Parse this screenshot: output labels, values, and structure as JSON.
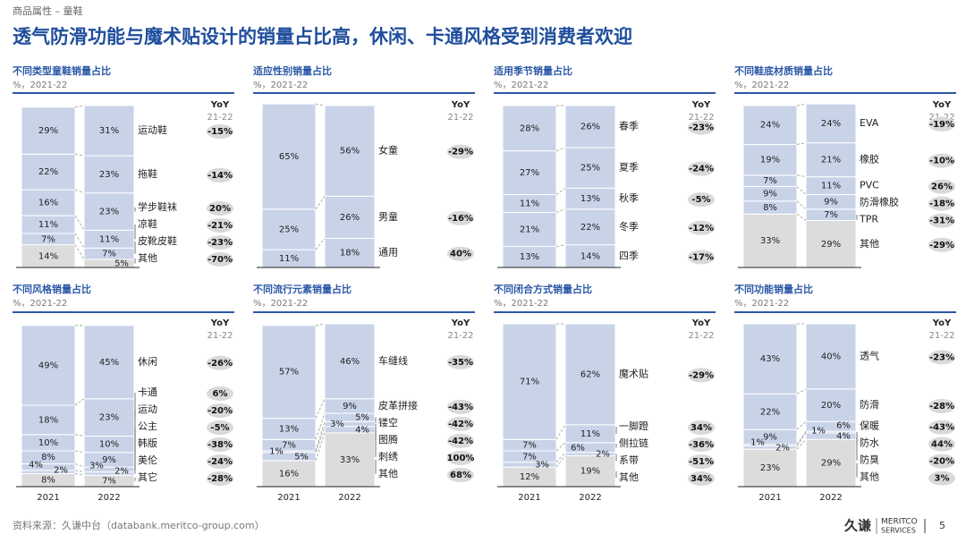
{
  "header": {
    "section": "商品属性 – 童鞋",
    "title": "透气防滑功能与魔术贴设计的销量占比高，休闲、卡通风格受到消费者欢迎"
  },
  "chart_data": [
    {
      "type": "stacked_bar",
      "title": "不同类型童鞋销量占比",
      "subtitle": "%，2021-22",
      "categories": [
        null,
        null
      ],
      "ylim": [
        0,
        100
      ],
      "yoy_header": "YoY",
      "yoy_period": "21-22",
      "series": [
        {
          "name": "运动鞋",
          "color": "#c9d3e8",
          "values": [
            29,
            31
          ],
          "value_labels": [
            "29%",
            "31%"
          ],
          "yoy": "-15%"
        },
        {
          "name": "拖鞋",
          "color": "#c9d3e8",
          "values": [
            22,
            23
          ],
          "value_labels": [
            "22%",
            "23%"
          ],
          "yoy": "-14%"
        },
        {
          "name": "学步鞋袜",
          "color": "#c9d3e8",
          "values": [
            16,
            23
          ],
          "value_labels": [
            "16%",
            "23%"
          ],
          "yoy": "20%"
        },
        {
          "name": "凉鞋",
          "color": "#c9d3e8",
          "values": [
            11,
            11
          ],
          "value_labels": [
            "11%",
            "11%"
          ],
          "yoy": "-21%"
        },
        {
          "name": "皮靴皮鞋",
          "color": "#c9d3e8",
          "values": [
            7,
            7
          ],
          "value_labels": [
            "7%",
            "7%"
          ],
          "yoy": "-23%"
        },
        {
          "name": "其他",
          "color": "#dcdcdc",
          "values": [
            14,
            5
          ],
          "value_labels": [
            "14%",
            "5%"
          ],
          "yoy": "-70%"
        }
      ]
    },
    {
      "type": "stacked_bar",
      "title": "适应性别销量占比",
      "subtitle": "%，2021-22",
      "categories": [
        null,
        null
      ],
      "ylim": [
        0,
        100
      ],
      "yoy_header": "YoY",
      "yoy_period": "21-22",
      "series": [
        {
          "name": "女童",
          "color": "#c9d3e8",
          "values": [
            65,
            56
          ],
          "value_labels": [
            "65%",
            "56%"
          ],
          "yoy": "-29%"
        },
        {
          "name": "男童",
          "color": "#c9d3e8",
          "values": [
            25,
            26
          ],
          "value_labels": [
            "25%",
            "26%"
          ],
          "yoy": "-16%"
        },
        {
          "name": "通用",
          "color": "#c9d3e8",
          "values": [
            11,
            18
          ],
          "value_labels": [
            "11%",
            "18%"
          ],
          "yoy": "40%"
        }
      ]
    },
    {
      "type": "stacked_bar",
      "title": "适用季节销量占比",
      "subtitle": "%，2021-22",
      "categories": [
        null,
        null
      ],
      "ylim": [
        0,
        100
      ],
      "yoy_header": "YoY",
      "yoy_period": "21-22",
      "series": [
        {
          "name": "春季",
          "color": "#c9d3e8",
          "values": [
            28,
            26
          ],
          "value_labels": [
            "28%",
            "26%"
          ],
          "yoy": "-23%"
        },
        {
          "name": "夏季",
          "color": "#c9d3e8",
          "values": [
            27,
            25
          ],
          "value_labels": [
            "27%",
            "25%"
          ],
          "yoy": "-24%"
        },
        {
          "name": "秋季",
          "color": "#c9d3e8",
          "values": [
            11,
            13
          ],
          "value_labels": [
            "11%",
            "13%"
          ],
          "yoy": "-5%"
        },
        {
          "name": "冬季",
          "color": "#c9d3e8",
          "values": [
            21,
            22
          ],
          "value_labels": [
            "21%",
            "22%"
          ],
          "yoy": "-12%"
        },
        {
          "name": "四季",
          "color": "#c9d3e8",
          "values": [
            13,
            14
          ],
          "value_labels": [
            "13%",
            "14%"
          ],
          "yoy": "-17%"
        }
      ]
    },
    {
      "type": "stacked_bar",
      "title": "不同鞋底材质销量占比",
      "subtitle": "%，2021-22",
      "categories": [
        null,
        null
      ],
      "ylim": [
        0,
        100
      ],
      "yoy_header": "YoY",
      "yoy_period": "21-22",
      "series": [
        {
          "name": "EVA",
          "color": "#c9d3e8",
          "values": [
            24,
            24
          ],
          "value_labels": [
            "24%",
            "24%"
          ],
          "yoy": "-19%"
        },
        {
          "name": "橡胶",
          "color": "#c9d3e8",
          "values": [
            19,
            21
          ],
          "value_labels": [
            "19%",
            "21%"
          ],
          "yoy": "-10%"
        },
        {
          "name": "PVC",
          "color": "#c9d3e8",
          "values": [
            7,
            11
          ],
          "value_labels": [
            "7%",
            "11%"
          ],
          "yoy": "26%"
        },
        {
          "name": "防滑橡胶",
          "color": "#c9d3e8",
          "values": [
            9,
            9
          ],
          "value_labels": [
            "9%",
            "9%"
          ],
          "yoy": "-18%"
        },
        {
          "name": "TPR",
          "color": "#c9d3e8",
          "values": [
            8,
            7
          ],
          "value_labels": [
            "8%",
            "7%"
          ],
          "yoy": "-31%"
        },
        {
          "name": "其他",
          "color": "#dcdcdc",
          "values": [
            33,
            29
          ],
          "value_labels": [
            "33%",
            "29%"
          ],
          "yoy": "-29%"
        }
      ]
    },
    {
      "type": "stacked_bar",
      "title": "不同风格销量占比",
      "subtitle": "%，2021-22",
      "categories": [
        "2021",
        "2022"
      ],
      "ylim": [
        0,
        100
      ],
      "yoy_header": "YoY",
      "yoy_period": "21-22",
      "series": [
        {
          "name": "休闲",
          "color": "#c9d3e8",
          "values": [
            49,
            45
          ],
          "value_labels": [
            "49%",
            "45%"
          ],
          "yoy": "-26%"
        },
        {
          "name": "卡通",
          "color": "#c9d3e8",
          "values": [
            18,
            23
          ],
          "value_labels": [
            "18%",
            "23%"
          ],
          "yoy": "6%"
        },
        {
          "name": "运动",
          "color": "#c9d3e8",
          "values": [
            10,
            10
          ],
          "value_labels": [
            "10%",
            "10%"
          ],
          "yoy": "-20%"
        },
        {
          "name": "公主",
          "color": "#c9d3e8",
          "values": [
            8,
            9
          ],
          "value_labels": [
            "8%",
            "9%"
          ],
          "yoy": "-5%"
        },
        {
          "name": "韩版",
          "color": "#c9d3e8",
          "values": [
            4,
            3
          ],
          "value_labels": [
            "4%",
            "3%"
          ],
          "yoy": "-38%"
        },
        {
          "name": "美伦",
          "color": "#c9d3e8",
          "values": [
            2,
            2
          ],
          "value_labels": [
            "2%",
            "2%"
          ],
          "yoy": "-24%"
        },
        {
          "name": "其它",
          "color": "#dcdcdc",
          "values": [
            8,
            7
          ],
          "value_labels": [
            "8%",
            "7%"
          ],
          "yoy": "-28%"
        }
      ]
    },
    {
      "type": "stacked_bar",
      "title": "不同流行元素销量占比",
      "subtitle": "%，2021-22",
      "categories": [
        "2021",
        "2022"
      ],
      "ylim": [
        0,
        100
      ],
      "yoy_header": "YoY",
      "yoy_period": "21-22",
      "series": [
        {
          "name": "车缝线",
          "color": "#c9d3e8",
          "values": [
            57,
            46
          ],
          "value_labels": [
            "57%",
            "46%"
          ],
          "yoy": "-35%"
        },
        {
          "name": "皮革拼接",
          "color": "#c9d3e8",
          "values": [
            13,
            9
          ],
          "value_labels": [
            "13%",
            "9%"
          ],
          "yoy": "-43%"
        },
        {
          "name": "镂空",
          "color": "#c9d3e8",
          "values": [
            7,
            5
          ],
          "value_labels": [
            "7%",
            "5%"
          ],
          "yoy": "-42%"
        },
        {
          "name": "图腾",
          "color": "#c9d3e8",
          "values": [
            1,
            3
          ],
          "value_labels": [
            "1%",
            "3%"
          ],
          "yoy": "-42%"
        },
        {
          "name": "刺绣",
          "color": "#c9d3e8",
          "values": [
            5,
            4
          ],
          "value_labels": [
            "5%",
            "4%"
          ],
          "yoy": "100%"
        },
        {
          "name": "其他",
          "color": "#dcdcdc",
          "values": [
            16,
            33
          ],
          "value_labels": [
            "16%",
            "33%"
          ],
          "yoy": "68%"
        }
      ]
    },
    {
      "type": "stacked_bar",
      "title": "不同闭合方式销量占比",
      "subtitle": "%，2021-22",
      "categories": [
        "2021",
        "2022"
      ],
      "ylim": [
        0,
        100
      ],
      "yoy_header": "YoY",
      "yoy_period": "21-22",
      "series": [
        {
          "name": "魔术贴",
          "color": "#c9d3e8",
          "values": [
            71,
            62
          ],
          "value_labels": [
            "71%",
            "62%"
          ],
          "yoy": "-29%"
        },
        {
          "name": "一脚蹬",
          "color": "#c9d3e8",
          "values": [
            7,
            11
          ],
          "value_labels": [
            "7%",
            "11%"
          ],
          "yoy": "34%"
        },
        {
          "name": "侧拉链",
          "color": "#c9d3e8",
          "values": [
            7,
            6
          ],
          "value_labels": [
            "7%",
            "6%"
          ],
          "yoy": "-36%"
        },
        {
          "name": "系带",
          "color": "#c9d3e8",
          "values": [
            3,
            2
          ],
          "value_labels": [
            "3%",
            "2%"
          ],
          "yoy": "-51%"
        },
        {
          "name": "其他",
          "color": "#dcdcdc",
          "values": [
            12,
            19
          ],
          "value_labels": [
            "12%",
            "19%"
          ],
          "yoy": "34%"
        }
      ]
    },
    {
      "type": "stacked_bar",
      "title": "不同功能销量占比",
      "subtitle": "%，2021-22",
      "categories": [
        "2021",
        "2022"
      ],
      "ylim": [
        0,
        100
      ],
      "yoy_header": "YoY",
      "yoy_period": "21-22",
      "series": [
        {
          "name": "透气",
          "color": "#c9d3e8",
          "values": [
            43,
            40
          ],
          "value_labels": [
            "43%",
            "40%"
          ],
          "yoy": "-23%"
        },
        {
          "name": "防滑",
          "color": "#c9d3e8",
          "values": [
            22,
            20
          ],
          "value_labels": [
            "22%",
            "20%"
          ],
          "yoy": "-28%"
        },
        {
          "name": "保暖",
          "color": "#c9d3e8",
          "values": [
            9,
            6
          ],
          "value_labels": [
            "9%",
            "6%"
          ],
          "yoy": "-43%"
        },
        {
          "name": "防水",
          "color": "#c9d3e8",
          "values": [
            1,
            1
          ],
          "value_labels": [
            "1%",
            "1%"
          ],
          "yoy": "44%"
        },
        {
          "name": "防臭",
          "color": "#c9d3e8",
          "values": [
            2,
            4
          ],
          "value_labels": [
            "2%",
            "4%"
          ],
          "yoy": "-20%"
        },
        {
          "name": "其他",
          "color": "#dcdcdc",
          "values": [
            23,
            29
          ],
          "value_labels": [
            "23%",
            "29%"
          ],
          "yoy": "3%"
        }
      ]
    }
  ],
  "footer": {
    "source": "资料来源：久谦中台（databank.meritco-group.com）",
    "logo_cn": "久谦",
    "logo_en_1": "MERITCO",
    "logo_en_2": "SERVICES",
    "page": "5"
  }
}
